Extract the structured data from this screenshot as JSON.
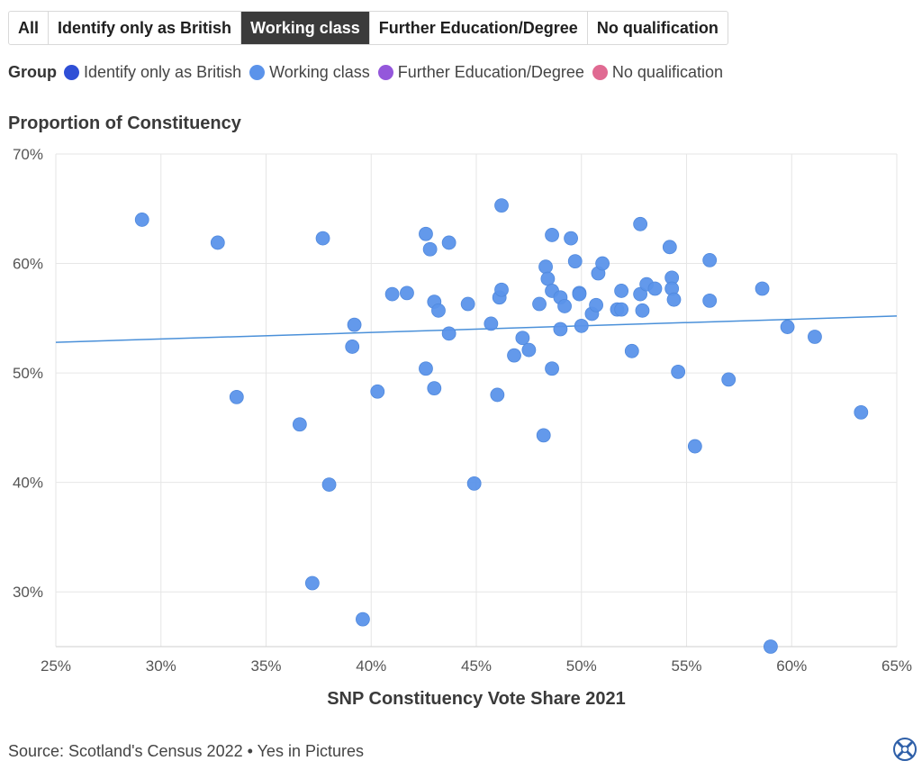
{
  "filter_tabs": [
    {
      "label": "All",
      "active": false
    },
    {
      "label": "Identify only as British",
      "active": false
    },
    {
      "label": "Working class",
      "active": true
    },
    {
      "label": "Further Education/Degree",
      "active": false
    },
    {
      "label": "No qualification",
      "active": false
    }
  ],
  "legend": {
    "title": "Group",
    "items": [
      {
        "label": "Identify only as British",
        "color": "#2f4fd6"
      },
      {
        "label": "Working class",
        "color": "#5b93ea"
      },
      {
        "label": "Further Education/Degree",
        "color": "#9457db"
      },
      {
        "label": "No qualification",
        "color": "#e06a92"
      }
    ]
  },
  "chart_data": {
    "type": "scatter",
    "title": "Proportion of Constituency",
    "xlabel": "SNP Constituency Vote Share 2021",
    "ylabel": "Proportion of Constituency",
    "xlim": [
      25,
      65
    ],
    "ylim": [
      25,
      70
    ],
    "x_ticks": [
      25,
      30,
      35,
      40,
      45,
      50,
      55,
      60,
      65
    ],
    "y_ticks": [
      30,
      40,
      50,
      60,
      70
    ],
    "x_tick_labels": [
      "25%",
      "30%",
      "35%",
      "40%",
      "45%",
      "50%",
      "55%",
      "60%",
      "65%"
    ],
    "y_tick_labels": [
      "30%",
      "40%",
      "50%",
      "60%",
      "70%"
    ],
    "grid": true,
    "series": [
      {
        "name": "Working class",
        "color": "#5b93ea",
        "points": [
          [
            29.1,
            64.0
          ],
          [
            32.7,
            61.9
          ],
          [
            33.6,
            47.8
          ],
          [
            36.6,
            45.3
          ],
          [
            37.2,
            30.8
          ],
          [
            37.7,
            62.3
          ],
          [
            38.0,
            39.8
          ],
          [
            39.1,
            52.4
          ],
          [
            39.2,
            54.4
          ],
          [
            39.6,
            27.5
          ],
          [
            40.3,
            48.3
          ],
          [
            41.0,
            57.2
          ],
          [
            41.7,
            57.3
          ],
          [
            42.6,
            62.7
          ],
          [
            42.6,
            50.4
          ],
          [
            42.8,
            61.3
          ],
          [
            43.0,
            48.6
          ],
          [
            43.0,
            56.5
          ],
          [
            43.2,
            55.7
          ],
          [
            43.7,
            61.9
          ],
          [
            43.7,
            53.6
          ],
          [
            44.6,
            56.3
          ],
          [
            44.9,
            39.9
          ],
          [
            45.7,
            54.5
          ],
          [
            46.0,
            48.0
          ],
          [
            46.1,
            56.9
          ],
          [
            46.2,
            57.6
          ],
          [
            46.2,
            65.3
          ],
          [
            46.8,
            51.6
          ],
          [
            47.2,
            53.2
          ],
          [
            47.5,
            52.1
          ],
          [
            48.0,
            56.3
          ],
          [
            48.2,
            44.3
          ],
          [
            48.3,
            59.7
          ],
          [
            48.4,
            58.6
          ],
          [
            48.6,
            57.5
          ],
          [
            48.6,
            50.4
          ],
          [
            48.6,
            62.6
          ],
          [
            49.0,
            54.0
          ],
          [
            49.0,
            56.9
          ],
          [
            49.2,
            56.1
          ],
          [
            49.5,
            62.3
          ],
          [
            49.7,
            60.2
          ],
          [
            49.9,
            57.3
          ],
          [
            49.9,
            57.2
          ],
          [
            50.0,
            54.3
          ],
          [
            50.5,
            55.4
          ],
          [
            50.7,
            56.2
          ],
          [
            50.8,
            59.1
          ],
          [
            51.0,
            60.0
          ],
          [
            51.7,
            55.8
          ],
          [
            51.9,
            55.8
          ],
          [
            51.9,
            57.5
          ],
          [
            52.4,
            52.0
          ],
          [
            52.8,
            63.6
          ],
          [
            52.8,
            57.2
          ],
          [
            52.9,
            55.7
          ],
          [
            53.1,
            58.1
          ],
          [
            53.5,
            57.7
          ],
          [
            54.2,
            61.5
          ],
          [
            54.3,
            58.7
          ],
          [
            54.3,
            57.7
          ],
          [
            54.4,
            56.7
          ],
          [
            54.6,
            50.1
          ],
          [
            55.4,
            43.3
          ],
          [
            56.1,
            60.3
          ],
          [
            56.1,
            56.6
          ],
          [
            57.0,
            49.4
          ],
          [
            58.6,
            57.7
          ],
          [
            59.0,
            25.0
          ],
          [
            59.8,
            54.2
          ],
          [
            61.1,
            53.3
          ],
          [
            63.3,
            46.4
          ]
        ],
        "trendline": {
          "x": [
            25,
            65
          ],
          "y": [
            52.8,
            55.2
          ]
        }
      }
    ]
  },
  "footer": {
    "source": "Source: Scotland's Census 2022 • Yes in Pictures"
  },
  "brand": {
    "logo_icon": "saltire-circle-logo-icon"
  }
}
